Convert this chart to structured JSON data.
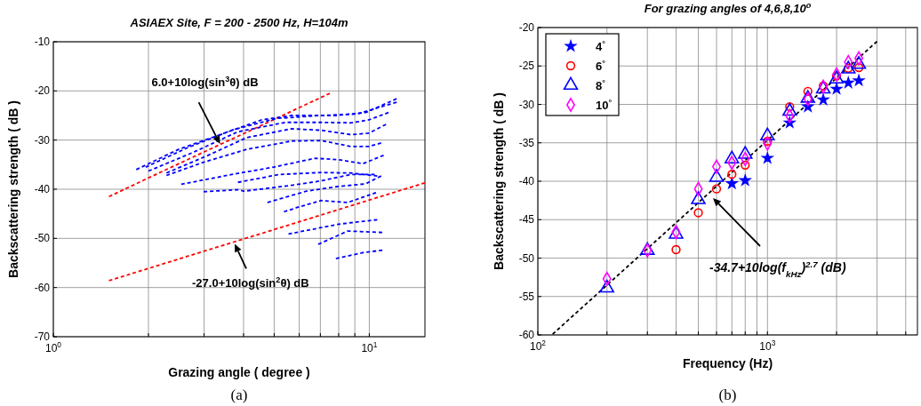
{
  "chart_data": [
    {
      "type": "line",
      "title": "ASIAEX Site, F = 200 - 2500 Hz, H=104m",
      "xlabel": "Grazing angle ( degree )",
      "ylabel": "Backscattering strength ( dB )",
      "log": "x",
      "grid": true,
      "line_style": "dashed",
      "xlim": [
        1,
        15
      ],
      "ylim": [
        -70,
        -10
      ],
      "xticks": [
        {
          "value": 1,
          "label": "10$^{0}$"
        },
        {
          "value": 2,
          "label": null
        },
        {
          "value": 3,
          "label": null
        },
        {
          "value": 4,
          "label": null
        },
        {
          "value": 5,
          "label": null
        },
        {
          "value": 6,
          "label": null
        },
        {
          "value": 7,
          "label": null
        },
        {
          "value": 8,
          "label": null
        },
        {
          "value": 9,
          "label": null
        },
        {
          "value": 10,
          "label": "10$^{1}$"
        }
      ],
      "yticks": [
        -70,
        -60,
        -50,
        -40,
        -30,
        -20,
        -10
      ],
      "annotations": [
        {
          "text": "6.0+10log(sin$^{3}$θ) dB",
          "x": 3.37,
          "y": -30.8
        },
        {
          "text": "-27.0+10log(sin$^{2}$θ) dB",
          "x": 3.75,
          "y": -51.1
        },
        "(a)"
      ],
      "series": [
        {
          "color": "#ff0000",
          "x": [
            1.5,
            2,
            3,
            4,
            5,
            6,
            7.5
          ],
          "values": [
            -41.5,
            -37.7,
            -32.4,
            -28.7,
            -25.8,
            -23.4,
            -20.5
          ]
        },
        {
          "color": "#ff0000",
          "x": [
            1.5,
            3,
            5,
            10,
            15
          ],
          "values": [
            -58.6,
            -52.6,
            -48.2,
            -42.2,
            -38.7
          ]
        },
        {
          "color": "#0000ff",
          "x": [
            1.83,
            2.49,
            3.37,
            4.56,
            5.67,
            7.84,
            9.74,
            12.2
          ],
          "values": [
            -36.0,
            -31.9,
            -28.9,
            -25.9,
            -25.0,
            -25.0,
            -24.4,
            -21.6
          ]
        },
        {
          "color": "#0000ff",
          "x": [
            1.96,
            2.65,
            3.67,
            5.08,
            7.04,
            9.13,
            12.2
          ],
          "values": [
            -35.5,
            -31.6,
            -28.0,
            -25.6,
            -25.0,
            -24.7,
            -22.3
          ]
        },
        {
          "color": "#0000ff",
          "x": [
            2.0,
            2.77,
            3.84,
            5.43,
            7.04,
            8.74,
            9.96,
            11.5
          ],
          "values": [
            -36.3,
            -32.5,
            -28.3,
            -26.4,
            -26.4,
            -26.5,
            -25.9,
            -24.4
          ]
        },
        {
          "color": "#0000ff",
          "x": [
            2.28,
            3.09,
            4.09,
            5.67,
            7.04,
            8.74,
            9.96,
            11.3
          ],
          "values": [
            -36.7,
            -33.1,
            -29.5,
            -27.7,
            -28.0,
            -28.9,
            -28.6,
            -26.8
          ]
        },
        {
          "color": "#0000ff",
          "x": [
            2.28,
            2.96,
            4.09,
            5.67,
            7.04,
            8.74,
            9.96,
            10.9
          ],
          "values": [
            -37.2,
            -34.6,
            -31.9,
            -30.2,
            -30.1,
            -31.3,
            -31.3,
            -30.6
          ]
        },
        {
          "color": "#0000ff",
          "x": [
            2.54,
            3.67,
            4.98,
            6.74,
            8.02,
            9.54,
            11.1
          ],
          "values": [
            -39.0,
            -37.0,
            -35.5,
            -33.7,
            -34.0,
            -34.8,
            -33.1
          ]
        },
        {
          "color": "#0000ff",
          "x": [
            3.84,
            5.19,
            7.04,
            8.74,
            10.6
          ],
          "values": [
            -38.6,
            -37.0,
            -36.6,
            -36.7,
            -37.3
          ]
        },
        {
          "color": "#0000ff",
          "x": [
            2.99,
            3.84,
            4.01,
            5.67,
            7.04,
            8.74,
            10.4
          ],
          "values": [
            -40.5,
            -40.1,
            -40.4,
            -39.2,
            -38.3,
            -37.0,
            -37.0
          ]
        },
        {
          "color": "#0000ff",
          "x": [
            4.76,
            6.32,
            7.84,
            9.74,
            10.9
          ],
          "values": [
            -42.7,
            -40.4,
            -39.5,
            -38.9,
            -37.3
          ]
        },
        {
          "color": "#0000ff",
          "x": [
            5.37,
            5.92,
            7.04,
            8.55,
            10.5
          ],
          "values": [
            -44.6,
            -43.7,
            -42.3,
            -42.7,
            -40.7
          ]
        },
        {
          "color": "#0000ff",
          "x": [
            5.55,
            8.02,
            10.6
          ],
          "values": [
            -49.1,
            -47.1,
            -46.2
          ]
        },
        {
          "color": "#0000ff",
          "x": [
            6.89,
            8.55,
            11.0
          ],
          "values": [
            -51.2,
            -48.5,
            -48.8
          ]
        },
        {
          "color": "#0000ff",
          "x": [
            7.84,
            9.54,
            11.0
          ],
          "values": [
            -54.1,
            -52.9,
            -52.4
          ]
        }
      ]
    },
    {
      "type": "scatter",
      "title": "For grazing angles of 4,6,8,10$^{o}$",
      "xlabel": "Frequency (Hz)",
      "ylabel": "Backscattering strength ( dB )",
      "log": "x",
      "grid": true,
      "legend": "top left",
      "line_style": "dashed",
      "xlim": [
        100,
        4500
      ],
      "ylim": [
        -60,
        -20
      ],
      "xticks": [
        {
          "value": 100,
          "label": "10$^{2}$"
        },
        {
          "value": 200,
          "label": null
        },
        {
          "value": 300,
          "label": null
        },
        {
          "value": 400,
          "label": null
        },
        {
          "value": 500,
          "label": null
        },
        {
          "value": 600,
          "label": null
        },
        {
          "value": 700,
          "label": null
        },
        {
          "value": 800,
          "label": null
        },
        {
          "value": 900,
          "label": null
        },
        {
          "value": 1000,
          "label": "10$^{3}$"
        },
        {
          "value": 2000,
          "label": null
        },
        {
          "value": 3000,
          "label": null
        },
        {
          "value": 4000,
          "label": null
        }
      ],
      "yticks": [
        -60,
        -55,
        -50,
        -45,
        -40,
        -35,
        -30,
        -25,
        -20
      ],
      "annotations": [
        "-34.7+10log(f$_{kHz}$)$^{2.7}$ (dB)",
        "(b)"
      ],
      "series": [
        {
          "type": "line",
          "color": "#000000",
          "x": [
            116,
            3000
          ],
          "values": [
            -59.9,
            -21.8
          ]
        },
        {
          "name": "4$^{°}$",
          "color": "#0000ff",
          "marker": "star",
          "x": [
            700,
            800,
            1000,
            1250,
            1500,
            1750,
            2000,
            2250,
            2500
          ],
          "values": [
            -40.3,
            -39.9,
            -37.0,
            -32.4,
            -30.3,
            -29.4,
            -28.0,
            -27.2,
            -26.9
          ]
        },
        {
          "name": "6$^{°}$",
          "color": "#ff0000",
          "marker": "circle",
          "x": [
            400,
            500,
            600,
            700,
            800,
            1000,
            1250,
            1500,
            1750,
            2000,
            2250,
            2500
          ],
          "values": [
            -48.9,
            -44.1,
            -41.0,
            -39.1,
            -37.9,
            -34.8,
            -30.3,
            -28.3,
            -27.6,
            -26.3,
            -25.3,
            -25.2
          ]
        },
        {
          "name": "8$^{°}$",
          "color": "#0000ff",
          "marker": "triangle",
          "x": [
            200,
            300,
            400,
            500,
            600,
            700,
            800,
            1000,
            1250,
            1500,
            1750,
            2000,
            2250,
            2500
          ],
          "values": [
            -53.9,
            -49.0,
            -46.9,
            -42.4,
            -39.5,
            -37.1,
            -36.5,
            -34.1,
            -30.9,
            -29.2,
            -28.0,
            -26.7,
            -25.4,
            -24.8
          ]
        },
        {
          "name": "10$^{°}$",
          "color": "#ff00ff",
          "marker": "diamond",
          "x": [
            200,
            300,
            400,
            500,
            600,
            700,
            800,
            1000,
            1250,
            1500,
            1750,
            2000,
            2250,
            2500
          ],
          "values": [
            -52.7,
            -49.0,
            -46.6,
            -41.0,
            -38.1,
            -37.6,
            -37.1,
            -35.1,
            -31.5,
            -29.3,
            -27.7,
            -26.1,
            -24.5,
            -24.0
          ]
        }
      ]
    }
  ]
}
